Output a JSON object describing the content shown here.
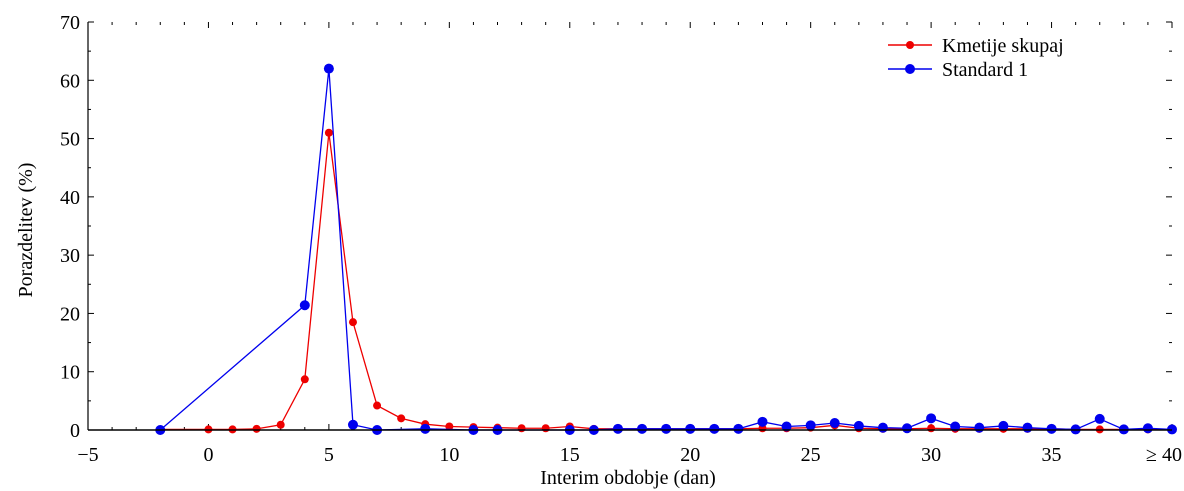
{
  "chart_data": {
    "type": "line",
    "xlabel": "Interim obdobje (dan)",
    "ylabel": "Porazdelitev (%)",
    "xlim": [
      -5,
      40
    ],
    "ylim": [
      0,
      70
    ],
    "x_ticks": [
      -5,
      0,
      5,
      10,
      15,
      20,
      25,
      30,
      35,
      40
    ],
    "x_tick_labels": [
      "−5",
      "0",
      "5",
      "10",
      "15",
      "20",
      "25",
      "30",
      "35",
      "≥ 40"
    ],
    "y_ticks": [
      0,
      10,
      20,
      30,
      40,
      50,
      60,
      70
    ],
    "y_tick_labels": [
      "0",
      "10",
      "20",
      "30",
      "40",
      "50",
      "60",
      "70"
    ],
    "legend_position": "top-right",
    "series": [
      {
        "name": "Kmetije skupaj",
        "color": "#ee0000",
        "points": [
          [
            -2,
            0.1
          ],
          [
            0,
            0.1
          ],
          [
            1,
            0.1
          ],
          [
            2,
            0.2
          ],
          [
            3,
            0.9
          ],
          [
            4,
            8.7
          ],
          [
            5,
            51.0
          ],
          [
            6,
            18.5
          ],
          [
            7,
            4.2
          ],
          [
            8,
            2.0
          ],
          [
            9,
            1.0
          ],
          [
            10,
            0.6
          ],
          [
            11,
            0.5
          ],
          [
            12,
            0.4
          ],
          [
            13,
            0.3
          ],
          [
            14,
            0.3
          ],
          [
            15,
            0.6
          ],
          [
            16,
            0.2
          ],
          [
            17,
            0.2
          ],
          [
            18,
            0.2
          ],
          [
            19,
            0.2
          ],
          [
            20,
            0.2
          ],
          [
            21,
            0.2
          ],
          [
            22,
            0.2
          ],
          [
            23,
            0.3
          ],
          [
            24,
            0.3
          ],
          [
            25,
            0.4
          ],
          [
            26,
            0.8
          ],
          [
            27,
            0.3
          ],
          [
            28,
            0.2
          ],
          [
            29,
            0.2
          ],
          [
            30,
            0.3
          ],
          [
            31,
            0.2
          ],
          [
            32,
            0.2
          ],
          [
            33,
            0.2
          ],
          [
            34,
            0.2
          ],
          [
            35,
            0.2
          ],
          [
            36,
            0.1
          ],
          [
            37,
            0.1
          ],
          [
            38,
            0.1
          ],
          [
            39,
            0.1
          ],
          [
            40,
            0.1
          ]
        ]
      },
      {
        "name": "Standard 1",
        "color": "#0000ee",
        "points": [
          [
            -2,
            0.0
          ],
          [
            4,
            21.4
          ],
          [
            5,
            62.0
          ],
          [
            6,
            0.9
          ],
          [
            7,
            0.0
          ],
          [
            9,
            0.2
          ],
          [
            11,
            0.0
          ],
          [
            12,
            0.0
          ],
          [
            15,
            0.0
          ],
          [
            16,
            0.0
          ],
          [
            17,
            0.2
          ],
          [
            18,
            0.2
          ],
          [
            19,
            0.2
          ],
          [
            20,
            0.2
          ],
          [
            21,
            0.2
          ],
          [
            22,
            0.2
          ],
          [
            23,
            1.4
          ],
          [
            24,
            0.6
          ],
          [
            25,
            0.8
          ],
          [
            26,
            1.2
          ],
          [
            27,
            0.7
          ],
          [
            28,
            0.4
          ],
          [
            29,
            0.3
          ],
          [
            30,
            2.0
          ],
          [
            31,
            0.6
          ],
          [
            32,
            0.4
          ],
          [
            33,
            0.7
          ],
          [
            34,
            0.4
          ],
          [
            35,
            0.2
          ],
          [
            36,
            0.1
          ],
          [
            37,
            1.9
          ],
          [
            38,
            0.1
          ],
          [
            39,
            0.3
          ],
          [
            40,
            0.1
          ]
        ]
      }
    ]
  }
}
